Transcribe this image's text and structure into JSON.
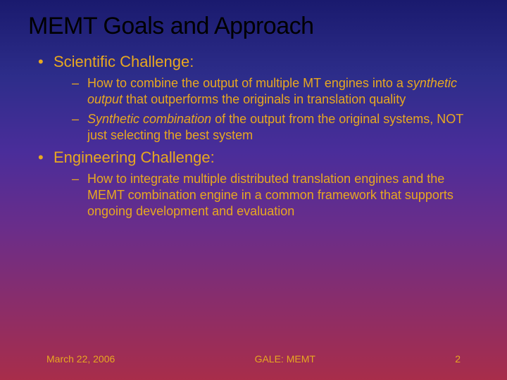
{
  "title": "MEMT Goals and Approach",
  "colors": {
    "title_color": "#000000",
    "body_color": "#e8a820",
    "gradient_top": "#1a1a6e",
    "gradient_bottom": "#a82d4a"
  },
  "typography": {
    "title_fontsize": 34,
    "level1_fontsize": 22,
    "level2_fontsize": 18,
    "footer_fontsize": 14,
    "font_family": "Verdana"
  },
  "bullets": [
    {
      "label": "Scientific Challenge:",
      "children": [
        {
          "pre": "How to combine the output of multiple MT engines into a ",
          "italic": "synthetic output",
          "post": " that outperforms the originals in translation quality"
        },
        {
          "pre": "",
          "italic": "Synthetic combination",
          "post": " of the output from the original systems, NOT just selecting the best system"
        }
      ]
    },
    {
      "label": "Engineering Challenge:",
      "children": [
        {
          "pre": "How to integrate multiple distributed translation engines and the MEMT combination engine in a common framework that supports ongoing development and evaluation",
          "italic": "",
          "post": ""
        }
      ]
    }
  ],
  "footer": {
    "date": "March 22, 2006",
    "center": "GALE: MEMT",
    "page": "2"
  }
}
